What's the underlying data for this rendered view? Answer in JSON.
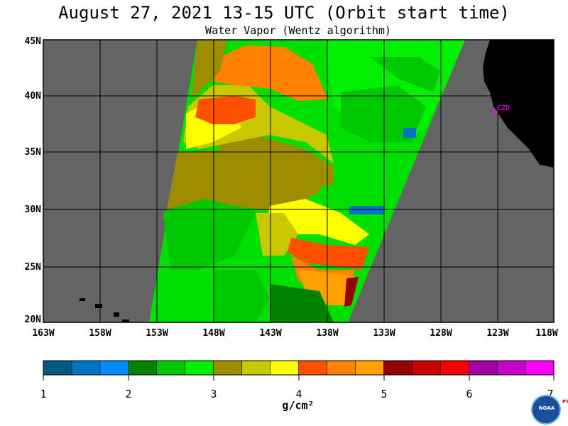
{
  "title": "August 27, 2021  13-15 UTC  (Orbit start time)",
  "subtitle": "Water Vapor (Wentz algorithm)",
  "latitude_labels": [
    "45N",
    "40N",
    "35N",
    "30N",
    "25N",
    "20N"
  ],
  "longitude_labels": [
    "163W",
    "158W",
    "153W",
    "148W",
    "143W",
    "138W",
    "133W",
    "128W",
    "123W",
    "118W"
  ],
  "station_label": "CZD",
  "colorbar": {
    "tick_labels": [
      "1",
      "2",
      "3",
      "4",
      "5",
      "6",
      "7"
    ],
    "unit": "g/cm²",
    "colors": [
      "#005a82",
      "#0073c3",
      "#008cff",
      "#008200",
      "#00c800",
      "#00f000",
      "#9b8c00",
      "#c8c800",
      "#ffff00",
      "#ff5000",
      "#ff8200",
      "#ffa000",
      "#960000",
      "#c80000",
      "#ff0000",
      "#a000a0",
      "#c800c8",
      "#ff00ff"
    ]
  },
  "colors": {
    "land": "#000000",
    "no_data": "#646464",
    "grid": "#000000"
  },
  "logo_text": "NOAA",
  "side_text": "PSL"
}
